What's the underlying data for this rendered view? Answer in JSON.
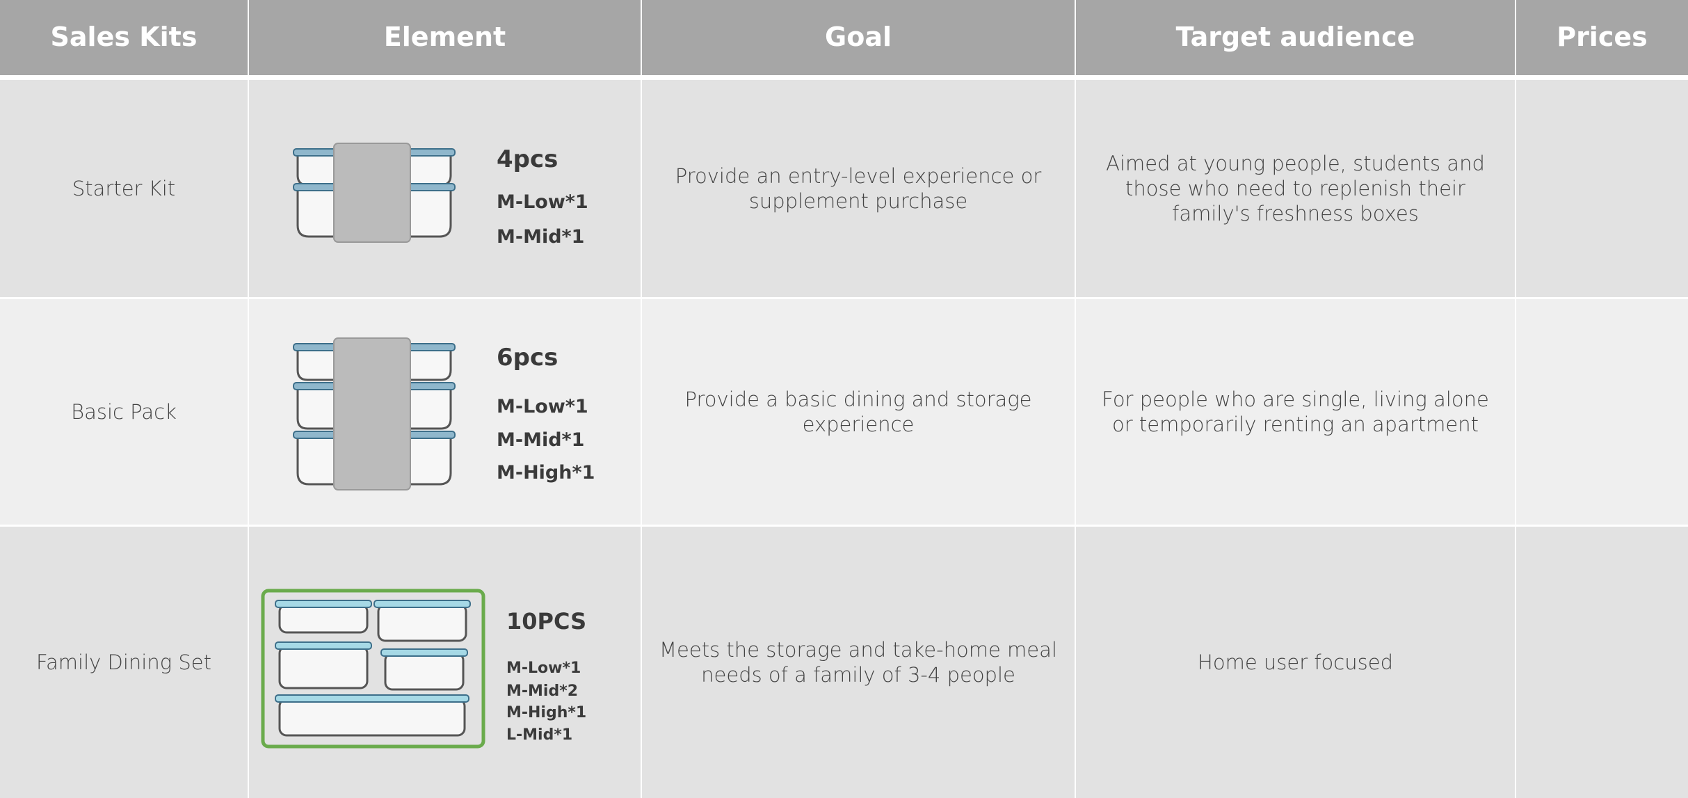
{
  "table": {
    "headers": [
      "Sales Kits",
      "Element",
      "Goal",
      "Target audience",
      "Prices"
    ],
    "rows": [
      {
        "kit": "Starter Kit",
        "element": {
          "count": "4pcs",
          "items": [
            "M-Low*1",
            "M-Mid*1"
          ]
        },
        "goal": "Provide an entry-level experience or supplement purchase",
        "audience": "Aimed at young people, students and those who need to replenish their family's freshness boxes"
      },
      {
        "kit": "Basic Pack",
        "element": {
          "count": "6pcs",
          "items": [
            "M-Low*1",
            "M-Mid*1",
            "M-High*1"
          ]
        },
        "goal": "Provide a basic dining and storage experience",
        "audience": "For people who are single, living alone or temporarily renting an apartment"
      },
      {
        "kit": "Family Dining Set",
        "element": {
          "count": "10PCS",
          "items": [
            "M-Low*1",
            "M-Mid*2",
            "M-High*1",
            "L-Mid*1"
          ]
        },
        "goal": "Meets the storage and take-home meal needs of a family of 3-4 people",
        "audience": "Home user focused"
      }
    ]
  }
}
